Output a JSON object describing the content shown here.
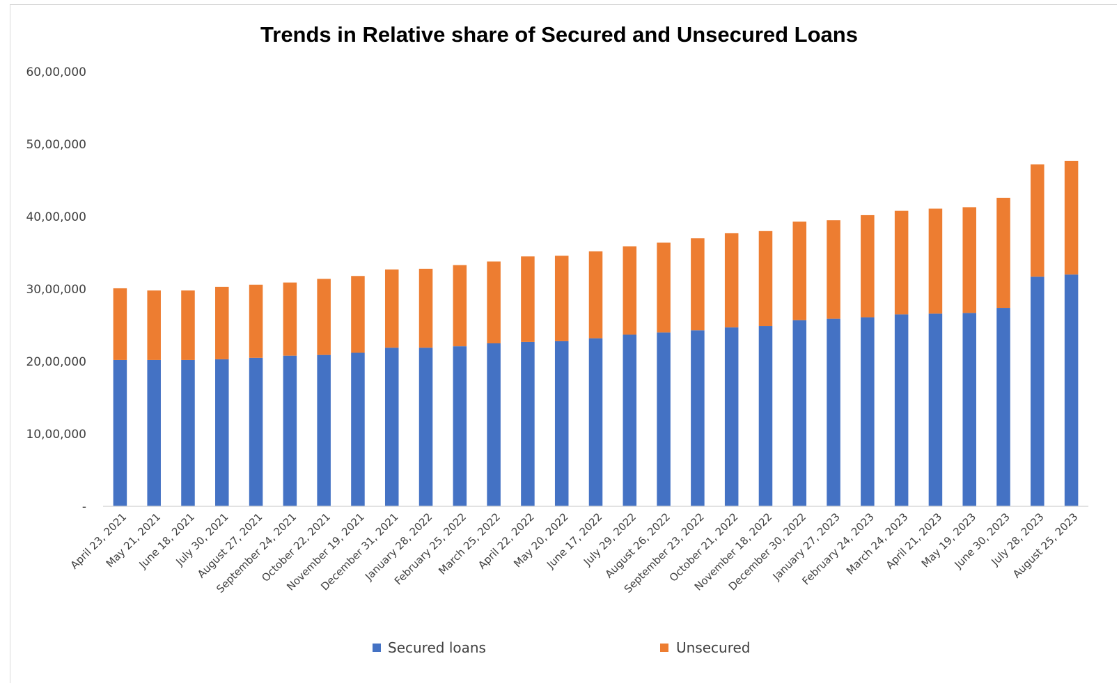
{
  "chart_data": {
    "type": "bar",
    "stacked": true,
    "title": "Trends in Relative share of Secured and Unsecured Loans",
    "xlabel": "",
    "ylabel": "",
    "ylim": [
      0,
      6000000
    ],
    "yticks": [
      {
        "value": 0,
        "label": "-"
      },
      {
        "value": 1000000,
        "label": "10,00,000"
      },
      {
        "value": 2000000,
        "label": "20,00,000"
      },
      {
        "value": 3000000,
        "label": "30,00,000"
      },
      {
        "value": 4000000,
        "label": "40,00,000"
      },
      {
        "value": 5000000,
        "label": "50,00,000"
      },
      {
        "value": 6000000,
        "label": "60,00,000"
      }
    ],
    "grid": false,
    "legend_position": "bottom",
    "categories": [
      "April 23, 2021",
      "May 21, 2021",
      "June 18, 2021",
      "July 30, 2021",
      "August 27, 2021",
      "September 24, 2021",
      "October 22, 2021",
      "November 19, 2021",
      "December 31, 2021",
      "January 28, 2022",
      "February 25, 2022",
      "March 25, 2022",
      "April 22, 2022",
      "May 20, 2022",
      "June 17, 2022",
      "July 29, 2022",
      "August 26, 2022",
      "September 23, 2022",
      "October 21, 2022",
      "November 18, 2022",
      "December 30, 2022",
      "January 27, 2023",
      "February 24, 2023",
      "March 24, 2023",
      "April 21, 2023",
      "May 19, 2023",
      "June 30, 2023",
      "July 28, 2023",
      "August 25, 2023"
    ],
    "series": [
      {
        "name": "Secured loans",
        "color": "#4472C4",
        "values": [
          2020000,
          2020000,
          2020000,
          2030000,
          2050000,
          2080000,
          2090000,
          2120000,
          2190000,
          2190000,
          2210000,
          2250000,
          2270000,
          2280000,
          2320000,
          2370000,
          2400000,
          2430000,
          2470000,
          2490000,
          2570000,
          2590000,
          2610000,
          2650000,
          2660000,
          2670000,
          2740000,
          3170000,
          3200000
        ]
      },
      {
        "name": "Unsecured",
        "color": "#ED7D31",
        "values": [
          990000,
          960000,
          960000,
          1000000,
          1010000,
          1010000,
          1050000,
          1060000,
          1080000,
          1090000,
          1120000,
          1130000,
          1180000,
          1180000,
          1200000,
          1220000,
          1240000,
          1270000,
          1300000,
          1310000,
          1360000,
          1360000,
          1410000,
          1430000,
          1450000,
          1460000,
          1520000,
          1550000,
          1570000
        ]
      }
    ]
  }
}
